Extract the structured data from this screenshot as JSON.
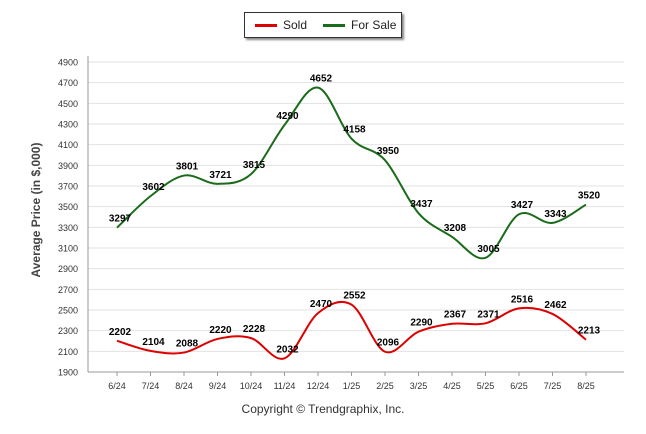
{
  "chart_data": {
    "type": "line",
    "title": "",
    "xlabel": "",
    "ylabel": "Average Price (in $,000)",
    "categories": [
      "6/24",
      "7/24",
      "8/24",
      "9/24",
      "10/24",
      "11/24",
      "12/24",
      "1/25",
      "2/25",
      "3/25",
      "4/25",
      "5/25",
      "6/25",
      "7/25",
      "8/25"
    ],
    "ylim": [
      1900,
      4900
    ],
    "yticks": [
      1900,
      2100,
      2300,
      2500,
      2700,
      2900,
      3100,
      3300,
      3500,
      3700,
      3900,
      4100,
      4300,
      4500,
      4700,
      4900
    ],
    "grid": true,
    "legend_position": "top-center",
    "series": [
      {
        "name": "Sold",
        "color": "#dd0000",
        "values": [
          2202,
          2104,
          2088,
          2220,
          2228,
          2032,
          2470,
          2552,
          2096,
          2290,
          2367,
          2371,
          2516,
          2462,
          2213
        ]
      },
      {
        "name": "For Sale",
        "color": "#1a6b1a",
        "values": [
          3297,
          3602,
          3801,
          3721,
          3815,
          4290,
          4652,
          4158,
          3950,
          3437,
          3208,
          3005,
          3427,
          3343,
          3520
        ]
      }
    ]
  },
  "copyright": "Copyright © Trendgraphix, Inc."
}
